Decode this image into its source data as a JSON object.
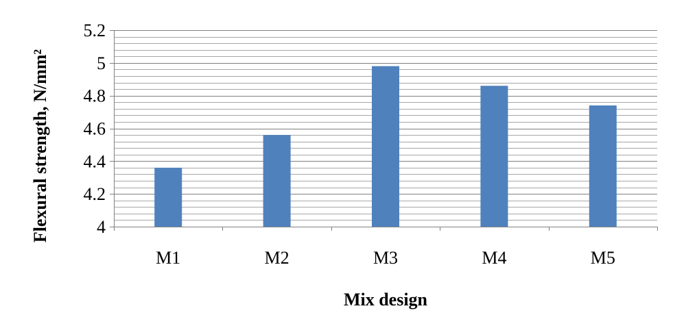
{
  "chart_data": {
    "type": "bar",
    "categories": [
      "M1",
      "M2",
      "M3",
      "M4",
      "M5"
    ],
    "series": [
      {
        "values": [
          4.36,
          4.56,
          4.98,
          4.86,
          4.74
        ],
        "color": "#4f81bd"
      }
    ],
    "xlabel": "Mix design",
    "ylabel": "Flexural strength, N/mm²",
    "ylim": [
      4,
      5.2
    ],
    "major_ticks": [
      "4",
      "4.2",
      "4.4",
      "4.6",
      "4.8",
      "5",
      "5.2"
    ],
    "tick_step": 0.2,
    "minor_step": 0.04,
    "grid": true,
    "legend": "none"
  },
  "colors": {
    "bar": "#4f81bd",
    "grid": "#888888",
    "axis": "#808080"
  }
}
